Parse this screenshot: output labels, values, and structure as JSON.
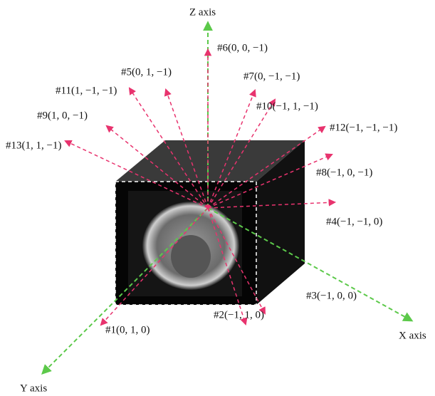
{
  "axes": {
    "z": "Z axis",
    "x": "X axis",
    "y": "Y axis"
  },
  "directions": [
    "#1(0, 1, 0)",
    "#2(−1, 1, 0)",
    "#3(−1, 0, 0)",
    "#4(−1, −1, 0)",
    "#5(0, 1, −1)",
    "#6(0, 0, −1)",
    "#7(0, −1, −1)",
    "#8(−1, 0, −1)",
    "#9(1, 0, −1)",
    "#10(−1, 1, −1)",
    "#11(1, −1, −1)",
    "#12(−1, −1, −1)",
    "#13(1, 1, −1)"
  ]
}
